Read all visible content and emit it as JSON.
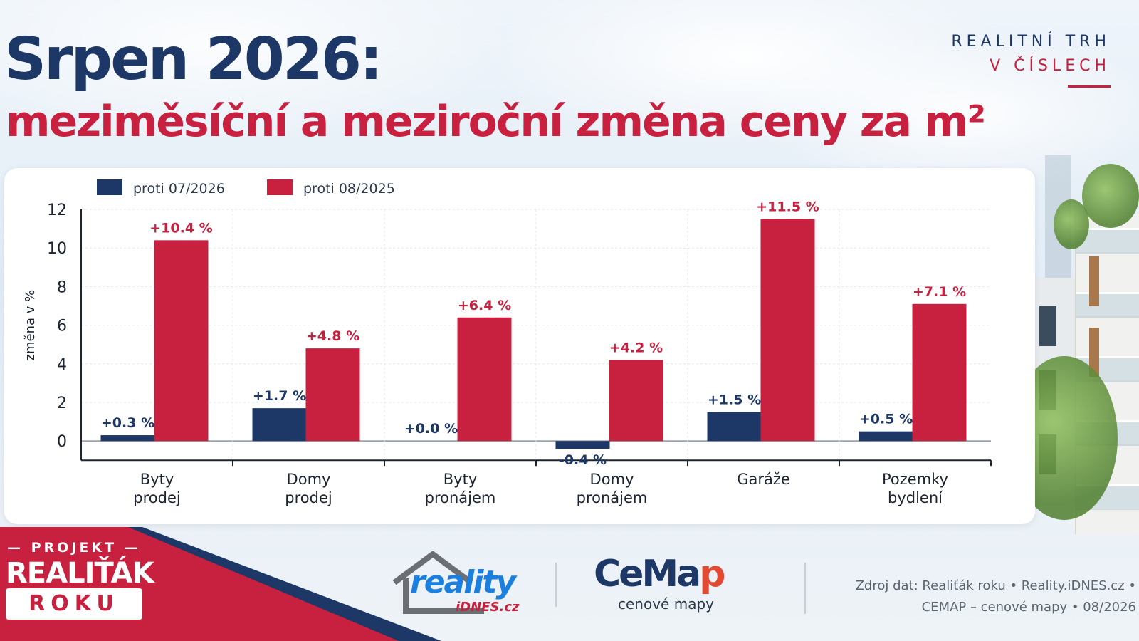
{
  "header": {
    "title": "Srpen 2026:",
    "subtitle": "meziměsíční a meziroční změna ceny za m²",
    "tagline_line1": "REALITNÍ TRH",
    "tagline_line2": "V ČÍSLECH"
  },
  "colors": {
    "navy": "#1d3766",
    "red": "#c8203f"
  },
  "chart_data": {
    "type": "bar",
    "categories": [
      [
        "Byty",
        "prodej"
      ],
      [
        "Domy",
        "prodej"
      ],
      [
        "Byty",
        "pronájem"
      ],
      [
        "Domy",
        "pronájem"
      ],
      [
        "Garáže"
      ],
      [
        "Pozemky",
        "bydlení"
      ]
    ],
    "series": [
      {
        "name": "proti 07/2026",
        "color": "#1d3766",
        "values": [
          0.3,
          1.7,
          0.0,
          -0.4,
          1.5,
          0.5
        ],
        "labels": [
          "+0.3 %",
          "+1.7 %",
          "+0.0 %",
          "-0.4 %",
          "+1.5 %",
          "+0.5 %"
        ]
      },
      {
        "name": "proti 08/2025",
        "color": "#c8203f",
        "values": [
          10.4,
          4.8,
          6.4,
          4.2,
          11.5,
          7.1
        ],
        "labels": [
          "+10.4 %",
          "+4.8 %",
          "+6.4 %",
          "+4.2 %",
          "+11.5 %",
          "+7.1 %"
        ]
      }
    ],
    "ylabel": "změna v %",
    "ylim": [
      -1,
      12
    ],
    "yticks": [
      0,
      2,
      4,
      6,
      8,
      10,
      12
    ],
    "grid": true,
    "legend": "top-left"
  },
  "footer": {
    "project_label": "PROJEKT",
    "project_title": "REALIŤÁK",
    "project_box": "ROKU",
    "reality_logo": "reality",
    "reality_logo_sub": "iDNES.cz",
    "cemap_logo_part1": "CeMa",
    "cemap_logo_part2": "p",
    "cemap_sub": "cenové mapy",
    "source_line1": "Zdroj dat: Realiťák roku • Reality.iDNES.cz •",
    "source_line2": "CEMAP – cenové mapy • 08/2026"
  }
}
